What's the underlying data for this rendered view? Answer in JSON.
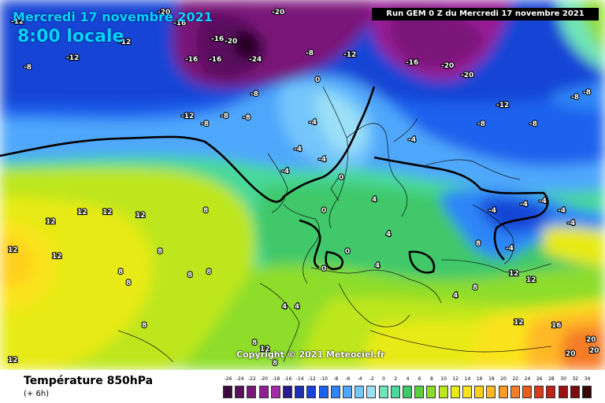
{
  "header": {
    "date": "Mercredi 17 novembre 2021",
    "time": "8:00 locale",
    "run": "Run GEM 0 Z du Mercredi 17 novembre 2021"
  },
  "copyright": "Copyright © 2021 Meteociel.fr",
  "footer": {
    "title": "Température 850hPa",
    "subtitle": "(+ 6h)"
  },
  "legend": {
    "values": [
      "-26",
      "-24",
      "-22",
      "-20",
      "-18",
      "-16",
      "-14",
      "-12",
      "-10",
      "-8",
      "-6",
      "-4",
      "-2",
      "0",
      "2",
      "4",
      "6",
      "8",
      "10",
      "12",
      "14",
      "16",
      "18",
      "20",
      "22",
      "24",
      "26",
      "28",
      "30",
      "32",
      "34"
    ],
    "colors": [
      "#3b0a3e",
      "#5a0f5e",
      "#7a1679",
      "#961e94",
      "#a52aa8",
      "#2a1a8c",
      "#2030b4",
      "#1844d6",
      "#1d62ee",
      "#2f86f7",
      "#4fa7fb",
      "#75c6fb",
      "#9be0f7",
      "#70e4b8",
      "#4ad89a",
      "#3fc86a",
      "#57d23d",
      "#8ddd2a",
      "#bde61c",
      "#e7ea19",
      "#fae31a",
      "#ffcf1e",
      "#ffb826",
      "#fd9b2a",
      "#f57c26",
      "#e95a21",
      "#d83b1c",
      "#c02118",
      "#9f1014",
      "#7a0a10",
      "#3a0505"
    ]
  },
  "map_labels": [
    {
      "t": "-20"
    },
    {
      "t": "-16"
    },
    {
      "t": "-20"
    },
    {
      "t": "-12"
    },
    {
      "t": "-16"
    },
    {
      "t": "-20"
    },
    {
      "t": "-24"
    },
    {
      "t": "-12"
    },
    {
      "t": "-16"
    },
    {
      "t": "-16"
    },
    {
      "t": "-12"
    },
    {
      "t": "-8"
    },
    {
      "t": "-12"
    },
    {
      "t": "-16"
    },
    {
      "t": "-20"
    },
    {
      "t": "-20"
    },
    {
      "t": "-8"
    },
    {
      "t": "-8"
    },
    {
      "t": "-12"
    },
    {
      "t": "-8"
    },
    {
      "t": "-8"
    },
    {
      "t": "-8"
    },
    {
      "t": "-12"
    },
    {
      "t": "-4"
    },
    {
      "t": "-4"
    },
    {
      "t": "-4"
    },
    {
      "t": "-4"
    },
    {
      "t": "0"
    },
    {
      "t": "0"
    },
    {
      "t": "0"
    },
    {
      "t": "-4"
    },
    {
      "t": "-8"
    },
    {
      "t": "-8"
    },
    {
      "t": "-8"
    },
    {
      "t": "-8"
    },
    {
      "t": "-4"
    },
    {
      "t": "-4"
    },
    {
      "t": "-4"
    },
    {
      "t": "-4"
    },
    {
      "t": "4"
    },
    {
      "t": "4"
    },
    {
      "t": "12"
    },
    {
      "t": "12"
    },
    {
      "t": "12"
    },
    {
      "t": "12"
    },
    {
      "t": "12"
    },
    {
      "t": "12"
    },
    {
      "t": "8"
    },
    {
      "t": "8"
    },
    {
      "t": "8"
    },
    {
      "t": "8"
    },
    {
      "t": "8"
    },
    {
      "t": "8"
    },
    {
      "t": "4"
    },
    {
      "t": "4"
    },
    {
      "t": "0"
    },
    {
      "t": "0"
    },
    {
      "t": "4"
    },
    {
      "t": "8"
    },
    {
      "t": "12"
    },
    {
      "t": "12"
    },
    {
      "t": "12"
    },
    {
      "t": "16"
    },
    {
      "t": "20"
    },
    {
      "t": "20"
    },
    {
      "t": "20"
    },
    {
      "t": "12"
    },
    {
      "t": "-4"
    },
    {
      "t": "-4"
    },
    {
      "t": "4"
    },
    {
      "t": "8"
    },
    {
      "t": "8"
    },
    {
      "t": "8"
    },
    {
      "t": "12"
    },
    {
      "t": "8"
    }
  ]
}
